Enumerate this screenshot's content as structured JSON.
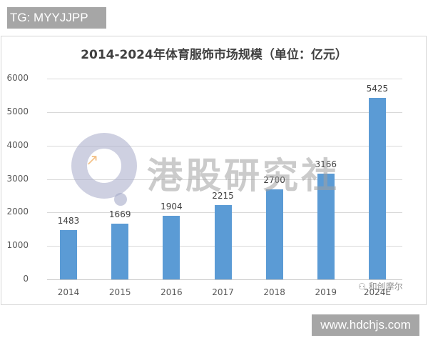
{
  "watermarks": {
    "top_tag": "TG: MYYJJPP",
    "center_text": "港股研究社",
    "corner_text": "和创摩尔",
    "bottom_tag": "www.hdchjs.com"
  },
  "colors": {
    "bar": "#5b9bd5",
    "tag_bg": "#a6a6a6"
  },
  "chart_data": {
    "type": "bar",
    "title": "2014-2024年体育服饰市场规模（单位：亿元）",
    "xlabel": "",
    "ylabel": "",
    "categories": [
      "2014",
      "2015",
      "2016",
      "2017",
      "2018",
      "2019",
      "2024E"
    ],
    "values": [
      1483,
      1669,
      1904,
      2215,
      2700,
      3166,
      5425
    ],
    "value_labels": [
      "1483",
      "1669",
      "1904",
      "2215",
      "2700",
      "3166",
      "5425"
    ],
    "ylim": [
      0,
      6000
    ],
    "yticks": [
      "0",
      "1000",
      "2000",
      "3000",
      "4000",
      "5000",
      "6000"
    ],
    "grid": true,
    "legend": "none"
  }
}
